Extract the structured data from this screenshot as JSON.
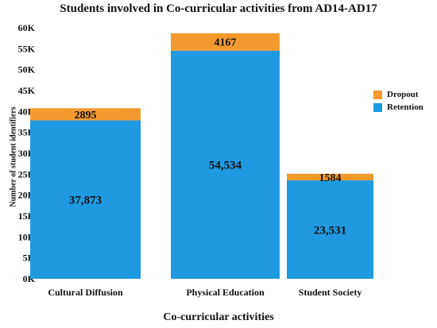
{
  "chart_data": {
    "type": "bar",
    "stacked": true,
    "title": "Students involved in Co-curricular activities from AD14-AD17",
    "xlabel": "Co-curricular activities",
    "ylabel": "Number of student identifiers",
    "ylim": [
      0,
      60000
    ],
    "yticks": [
      {
        "value": 0,
        "label": "0K"
      },
      {
        "value": 5000,
        "label": "5K"
      },
      {
        "value": 10000,
        "label": "10K"
      },
      {
        "value": 15000,
        "label": "15K"
      },
      {
        "value": 20000,
        "label": "20K"
      },
      {
        "value": 25000,
        "label": "25K"
      },
      {
        "value": 30000,
        "label": "30K"
      },
      {
        "value": 35000,
        "label": "35K"
      },
      {
        "value": 40000,
        "label": "40K"
      },
      {
        "value": 45000,
        "label": "45K"
      },
      {
        "value": 50000,
        "label": "50K"
      },
      {
        "value": 55000,
        "label": "55K"
      },
      {
        "value": 60000,
        "label": "60K"
      }
    ],
    "categories": [
      "Cultural Diffusion",
      "Physical Education",
      "Student Society"
    ],
    "series": [
      {
        "name": "Retention",
        "color": "#1f9ae0",
        "values": [
          37873,
          54534,
          23531
        ],
        "labels": [
          "37,873",
          "54,534",
          "23,531"
        ]
      },
      {
        "name": "Dropout",
        "color": "#f39a2e",
        "values": [
          2895,
          4167,
          1584
        ],
        "labels": [
          "2895",
          "4167",
          "1584"
        ]
      }
    ],
    "legend_position": "right",
    "legend_order": [
      "Dropout",
      "Retention"
    ],
    "grid": false
  }
}
